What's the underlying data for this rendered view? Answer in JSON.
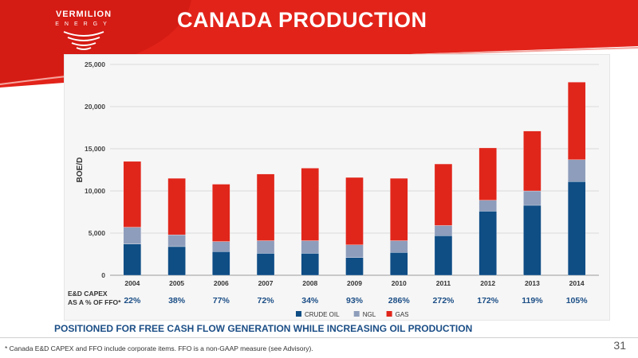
{
  "logo": {
    "name": "VERMILION",
    "sub": "ENERGY"
  },
  "title": "CANADA PRODUCTION",
  "subtitle": "POSITIONED FOR FREE CASH FLOW GENERATION WHILE INCREASING OIL PRODUCTION",
  "footnote": "* Canada E&D CAPEX and FFO include corporate items. FFO is a non-GAAP measure (see Advisory).",
  "page_number": "31",
  "colors": {
    "crude_oil": "#0f4d85",
    "ngl": "#8e9dbb",
    "gas": "#e0261b",
    "header_red": "#e2231a"
  },
  "capex": {
    "label_line1": "E&D CAPEX",
    "label_line2": "AS A % OF FFO*",
    "values": [
      "22%",
      "38%",
      "77%",
      "72%",
      "34%",
      "93%",
      "286%",
      "272%",
      "172%",
      "119%",
      "105%"
    ]
  },
  "chart_data": {
    "type": "bar",
    "stacked": true,
    "title": "",
    "xlabel": "",
    "ylabel": "BOE/D",
    "categories": [
      "2004",
      "2005",
      "2006",
      "2007",
      "2008",
      "2009",
      "2010",
      "2011",
      "2012",
      "2013",
      "2014"
    ],
    "series": [
      {
        "name": "CRUDE OIL",
        "color": "#0f4d85",
        "values": [
          3700,
          3400,
          2800,
          2600,
          2600,
          2100,
          2700,
          4700,
          7600,
          8300,
          11100
        ]
      },
      {
        "name": "NGL",
        "color": "#8e9dbb",
        "values": [
          2000,
          1400,
          1200,
          1500,
          1500,
          1500,
          1400,
          1200,
          1300,
          1700,
          2600
        ]
      },
      {
        "name": "GAS",
        "color": "#e0261b",
        "values": [
          7800,
          6700,
          6800,
          7900,
          8600,
          8000,
          7400,
          7300,
          6200,
          7100,
          9200
        ]
      }
    ],
    "ylim": [
      0,
      25000
    ],
    "yticks": [
      0,
      5000,
      10000,
      15000,
      20000,
      25000
    ],
    "ytick_labels": [
      "0",
      "5,000",
      "10,000",
      "15,000",
      "20,000",
      "25,000"
    ],
    "grid": true,
    "legend": "bottom"
  }
}
